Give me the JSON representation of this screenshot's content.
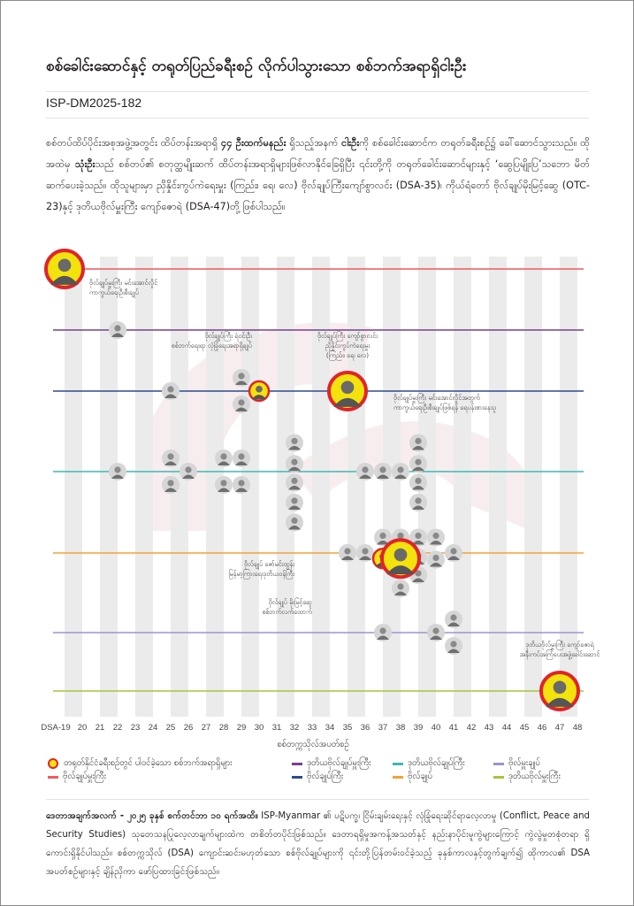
{
  "header": {
    "title": "စစ်ခေါင်းဆောင်နှင့် တရုတ်ပြည်ခရီးစဉ် လိုက်ပါသွားသော စစ်ဘက်အရာရှိငါးဦး",
    "report_code": "ISP-DM2025-182"
  },
  "intro": {
    "p1": "စစ်တပ်ထိပ်ပိုင်းအစုအဖွဲ့အတွင်း ထိပ်တန်းအရာရှိ ",
    "bold1": "၄၄ ဦးထက်မနည်း",
    "p2": " ရှိသည့်အနက် ",
    "bold2": "ငါးဦး",
    "p3": "ကို စစ်ခေါင်းဆောင်က တရုတ်ခရီးစဉ်၌ ခေါ်ဆောင်သွားသည်။ ထိုအထဲမှ ",
    "bold3": "သုံးဦး",
    "p4": "သည် စစ်တပ်၏ စတုတ္ထမျိုးဆက် ထိပ်တန်းအရာရှိများဖြစ်လာနိုင်ခြေရှိပြီး ၎င်းတို့ကို တရုတ်ခေါင်းဆောင်များနှင့် ‘ဆွေပြမျိုးပြ’သဘော မိတ်ဆက်ပေးခဲ့သည်။ ထိုသူများမှာ ညှိနှိုင်းကွပ်ကဲရေးမှူး (ကြည်း၊ ရေ၊ လေ) ဗိုလ်ချုပ်ကြီးကျော်စွာလင်း (DSA-35)၊ ကိုယ်ရံတော် ဗိုလ်ချုပ်မိုးမြင့်ဆွေ (OTC-23)နှင့် ဒုတိယဗိုလ်မှူးကြီး ကျော်ဇောရဲ (DSA-47)တို့ ဖြစ်ပါသည်။"
  },
  "chart_data": {
    "type": "scatter",
    "title": "",
    "xlabel": "စစ်တက္ကသိုလ်အပတ်စဉ်",
    "ylabel": "",
    "x_ticks": [
      "DSA-19",
      "20",
      "21",
      "22",
      "23",
      "24",
      "25",
      "26",
      "27",
      "28",
      "29",
      "30",
      "31",
      "32",
      "33",
      "34",
      "35",
      "36",
      "37",
      "38",
      "39",
      "40",
      "41",
      "42",
      "43",
      "44",
      "45",
      "46",
      "47",
      "48"
    ],
    "xlim": [
      19,
      48
    ],
    "grid": "alternating vertical bands",
    "legend_position": "bottom",
    "ranks": [
      {
        "key": "snr_gen",
        "name": "ဗိုလ်ချုပ်မှူးကြီး",
        "color": "#f0595c"
      },
      {
        "key": "vice_snr_gen",
        "name": "ဒုတိယဗိုလ်ချုပ်မှူးကြီး",
        "color": "#7b3f8c"
      },
      {
        "key": "gen",
        "name": "ဗိုလ်ချုပ်ကြီး",
        "color": "#2e4a8e"
      },
      {
        "key": "lt_gen",
        "name": "ဒုတိယဗိုလ်ချုပ်ကြီး",
        "color": "#3fb8b4"
      },
      {
        "key": "maj_gen",
        "name": "ဗိုလ်ချုပ်",
        "color": "#f5a03a"
      },
      {
        "key": "brig_gen",
        "name": "ဗိုလ်မှူးချုပ်",
        "color": "#9b95d0"
      },
      {
        "key": "vice_brig_gen",
        "name": "ဒုတိယဗိုလ်မှူးကြီး",
        "color": "#a7c43b"
      }
    ],
    "highlight_legend": "တရုတ်နိုင်ငံခရီးစဉ်တွင် ပါဝင်ခဲ့သော စစ်ဘက်အရာရှိများ",
    "highlight_colors": {
      "ring": "#e0242b",
      "fill": "#f4e20c"
    },
    "officers": [
      {
        "rank": "snr_gen",
        "x": 19,
        "offset": 0,
        "highlight": true,
        "size": "large"
      },
      {
        "rank": "vice_snr_gen",
        "x": 22,
        "offset": 0
      },
      {
        "rank": "gen",
        "x": 25,
        "offset": 0
      },
      {
        "rank": "gen",
        "x": 29,
        "offset": -0.6
      },
      {
        "rank": "gen",
        "x": 29,
        "offset": 0.6
      },
      {
        "rank": "gen",
        "x": 30,
        "offset": 0,
        "highlight": true,
        "size": "small"
      },
      {
        "rank": "gen",
        "x": 35,
        "offset": 0,
        "highlight": true,
        "size": "large"
      },
      {
        "rank": "lt_gen",
        "x": 22,
        "offset": 0
      },
      {
        "rank": "lt_gen",
        "x": 25,
        "offset": -0.6
      },
      {
        "rank": "lt_gen",
        "x": 25,
        "offset": 0.6
      },
      {
        "rank": "lt_gen",
        "x": 26,
        "offset": 0
      },
      {
        "rank": "lt_gen",
        "x": 28,
        "offset": -0.6
      },
      {
        "rank": "lt_gen",
        "x": 28,
        "offset": 0.6
      },
      {
        "rank": "lt_gen",
        "x": 29,
        "offset": -0.6
      },
      {
        "rank": "lt_gen",
        "x": 29,
        "offset": 0.6
      },
      {
        "rank": "lt_gen",
        "x": 32,
        "offset": -1.3
      },
      {
        "rank": "lt_gen",
        "x": 32,
        "offset": -0.35
      },
      {
        "rank": "lt_gen",
        "x": 32,
        "offset": 0.5
      },
      {
        "rank": "lt_gen",
        "x": 32,
        "offset": 1.4
      },
      {
        "rank": "lt_gen",
        "x": 32,
        "offset": 2.3
      },
      {
        "rank": "lt_gen",
        "x": 36,
        "offset": 0
      },
      {
        "rank": "lt_gen",
        "x": 37,
        "offset": 0
      },
      {
        "rank": "lt_gen",
        "x": 38,
        "offset": 0
      },
      {
        "rank": "lt_gen",
        "x": 39,
        "offset": -1.3
      },
      {
        "rank": "lt_gen",
        "x": 39,
        "offset": -0.35
      },
      {
        "rank": "lt_gen",
        "x": 39,
        "offset": 0.5
      },
      {
        "rank": "lt_gen",
        "x": 39,
        "offset": 1.4
      },
      {
        "rank": "maj_gen",
        "x": 35,
        "offset": 0
      },
      {
        "rank": "maj_gen",
        "x": 36,
        "offset": 0
      },
      {
        "rank": "maj_gen",
        "x": 37,
        "offset": -0.7
      },
      {
        "rank": "maj_gen",
        "x": 38,
        "offset": -0.7
      },
      {
        "rank": "maj_gen",
        "x": 39,
        "offset": -0.7
      },
      {
        "rank": "maj_gen",
        "x": 40,
        "offset": -0.7
      },
      {
        "rank": "maj_gen",
        "x": 41,
        "offset": 0
      },
      {
        "rank": "maj_gen",
        "x": 39,
        "offset": 0.2
      },
      {
        "rank": "maj_gen",
        "x": 40,
        "offset": 0.3
      },
      {
        "rank": "maj_gen",
        "x": 39,
        "offset": 1.0
      },
      {
        "rank": "maj_gen",
        "x": 38,
        "offset": 1.6
      },
      {
        "rank": "maj_gen",
        "x": 37,
        "offset": 0.25,
        "highlight": true,
        "size": "small"
      },
      {
        "rank": "maj_gen",
        "x": 38,
        "offset": 0.25,
        "highlight": true,
        "size": "large"
      },
      {
        "rank": "brig_gen",
        "x": 37,
        "offset": 0
      },
      {
        "rank": "brig_gen",
        "x": 40,
        "offset": 0
      },
      {
        "rank": "brig_gen",
        "x": 41,
        "offset": -0.6
      },
      {
        "rank": "brig_gen",
        "x": 41,
        "offset": 0.6
      },
      {
        "rank": "vice_brig_gen",
        "x": 47,
        "offset": 0,
        "highlight": true,
        "size": "large"
      }
    ],
    "annotations": [
      {
        "x": 19,
        "rank": "snr_gen",
        "lines": [
          "ဗိုလ်ချုပ်မှူးကြီး မင်းအောင်လှိုင်",
          "ကာကွယ်ရေးဦးစီးချုပ်"
        ],
        "anchor": "start"
      },
      {
        "x": 29,
        "rank": "gen",
        "lines": [
          "ဗိုလ်ချုပ်ကြီး ရဲဝင်းဦး",
          "စစ်ဘက်ရေးရာ လုံခြုံရေးအရာရှိချုပ်"
        ],
        "anchor": "end"
      },
      {
        "x": 35,
        "rank": "gen",
        "lines": [
          "ဗိုလ်ချုပ်ကြီး ကျော်စွာလင်း",
          "ညှိနှိုင်းကွပ်ကဲရေးမှူး",
          "(ကြည်း၊ ရေ၊ လေ)"
        ],
        "anchor": "middle"
      },
      {
        "x": 35,
        "rank": "gen",
        "lines": [
          "ဗိုလ်ချုပ်မှူးကြီး မင်းအောင်လှိုင်အတွက်",
          "ကာကွယ်ရေးဦးစီးချုပ်ဖြစ်ရန် ရေပန်းစားနေသူ"
        ],
        "anchor": "start"
      },
      {
        "x": 37,
        "rank": "maj_gen",
        "lines": [
          "ဗိုလ်ချုပ် ဇော်မင်းထွန်း",
          "မြန်မာ့ကြားရေးဒုတိယဝန်ကြီး"
        ],
        "anchor": "end"
      },
      {
        "x": 38,
        "rank": "maj_gen",
        "lines": [
          "ဗိုလ်ချုပ် မိုးမြင့်ဆွေ",
          "စစ်ဘက်လက်ထောက်"
        ],
        "anchor": "end"
      },
      {
        "x": 47,
        "rank": "vice_brig_gen",
        "lines": [
          "ဒုတိယဗိုလ်မှူးကြီး ကျော်ဇောရဲ",
          "အနီးကပ်အကြံပေးအဖွဲ့ခေါင်းဆောင်"
        ],
        "anchor": "middle"
      }
    ]
  },
  "note": {
    "bold": "ဒေတာအချက်အလက် - ၂၀၂၅ ခုနှစ် စက်တင်ဘာ ၁၀ ရက်အထိ။",
    "text": " ISP-Myanmar ၏ ပဋိပက္ခ၊ ငြိမ်းချမ်းရေးနှင့် လုံခြုံရေးဆိုင်ရာလေ့လာမှု (Conflict, Peace and Security Studies) သုတေသနပြုလေ့လာချက်များထဲက တစိတ်တပိုင်းဖြစ်သည်။ ဒေတာရရှိမှုအကန့်အသတ်နှင့် နည်းနာပိုင်းမူကွဲများကြောင့် ကွဲလွဲမှုတစုံတရာ ရှိကောင်းရှိနိုင်ပါသည်။ စစ်တက္ကသိုလ် (DSA) ကျောင်းဆင်းမဟုတ်သော စစ်ဗိုလ်ချုပ်များကို ၎င်းတို့ပြန်တမ်းဝင်ခဲ့သည့် ခုနှစ်ကာလနှင့်တွက်ချက်၍ ထိုကာလ၏ DSA အပတ်စဉ်များနှင့် ချိန်ညှိကာ ဖော်ပြထားခြင်းဖြစ်သည်။"
  }
}
